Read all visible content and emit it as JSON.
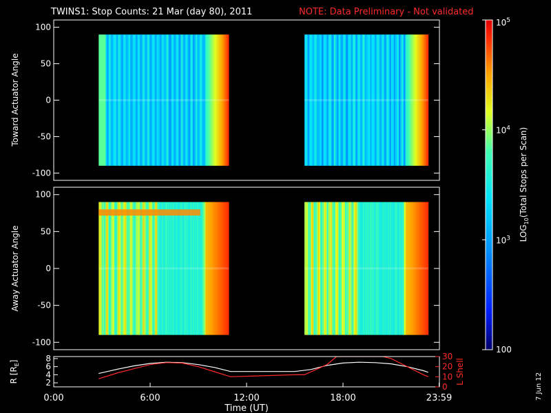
{
  "header": {
    "title": "TWINS1: Stop Counts: 21 Mar (day  80), 2011",
    "note": "NOTE: Data Preliminary - Not validated"
  },
  "date_stamp": "7 Jun 12",
  "chart_data": [
    {
      "type": "heatmap",
      "panel": "toward",
      "ylabel": "Toward Actuator Angle",
      "ylim": [
        -110,
        110
      ],
      "yticks": [
        "100",
        "50",
        "0",
        "-50",
        "-100"
      ],
      "ytick_values": [
        100,
        50,
        0,
        -50,
        -100
      ],
      "xlim": [
        0,
        24
      ],
      "data_intervals_hours": [
        [
          2.8,
          10.9
        ],
        [
          15.6,
          23.3
        ]
      ],
      "angle_range": [
        -90,
        90
      ],
      "colors": "blue-cyan-yellow-red"
    },
    {
      "type": "heatmap",
      "panel": "away",
      "ylabel": "Away Actuator Angle",
      "ylim": [
        -110,
        110
      ],
      "yticks": [
        "100",
        "50",
        "0",
        "-50",
        "-100"
      ],
      "ytick_values": [
        100,
        50,
        0,
        -50,
        -100
      ],
      "xlim": [
        0,
        24
      ],
      "data_intervals_hours": [
        [
          2.8,
          10.9
        ],
        [
          15.6,
          23.3
        ]
      ],
      "angle_range": [
        -90,
        90
      ],
      "colors": "cyan-yellow-red"
    },
    {
      "type": "line",
      "panel": "orbit",
      "xlabel": "Time (UT)",
      "xlim": [
        0,
        24
      ],
      "xticks": [
        "0:00",
        "6:00",
        "12:00",
        "18:00",
        "23:59"
      ],
      "xtick_values": [
        0,
        6,
        12,
        18,
        23.98
      ],
      "ylabel_left": "R [R",
      "ylabel_left_sub": "E",
      "ylabel_left_tail": "]",
      "ylim_left": [
        1,
        8.5
      ],
      "yticks_left": [
        "8",
        "6",
        "4",
        "2"
      ],
      "ytick_values_left": [
        8,
        6,
        4,
        2
      ],
      "ylabel_right": "L Shell",
      "ylim_right": [
        0,
        30
      ],
      "yticks_right": [
        "30",
        "20",
        "10",
        "0"
      ],
      "ytick_values_right": [
        30,
        20,
        10,
        0
      ],
      "series": [
        {
          "color": "#ffffff",
          "axis": "left",
          "x": [
            2.8,
            4,
            5,
            6,
            7,
            8,
            9,
            10,
            11,
            12,
            13,
            14,
            15,
            16,
            17,
            18,
            19,
            20,
            21,
            22,
            23,
            23.3
          ],
          "y": [
            4.3,
            5.4,
            6.2,
            6.8,
            7.1,
            7.0,
            6.5,
            5.8,
            4.8,
            4.8,
            4.8,
            4.8,
            4.8,
            5.3,
            6.3,
            6.9,
            7.1,
            7.0,
            6.7,
            6.0,
            5.0,
            4.6
          ]
        },
        {
          "color": "#ff2a2a",
          "axis": "right",
          "x": [
            2.8,
            4,
            5,
            6,
            7,
            8,
            9,
            10,
            11,
            13,
            15,
            15.6,
            17,
            17.6,
            20.5,
            21,
            22,
            23,
            23.3
          ],
          "y": [
            8,
            14,
            18,
            22,
            24,
            23.5,
            20,
            15,
            10,
            11,
            12,
            12,
            22,
            30,
            30,
            28,
            20,
            12,
            10
          ]
        }
      ]
    },
    {
      "type": "colorbar",
      "label": "LOG",
      "label_sub": "10",
      "label_tail": "(Total Stops per Scan)",
      "ticks": [
        {
          "base": "10",
          "exp": "5",
          "value": 100000
        },
        {
          "base": "10",
          "exp": "4",
          "value": 10000
        },
        {
          "base": "10",
          "exp": "3",
          "value": 1000
        },
        {
          "base": "100",
          "exp": "",
          "value": 100
        }
      ],
      "range": [
        100,
        100000
      ],
      "scale": "log"
    }
  ]
}
